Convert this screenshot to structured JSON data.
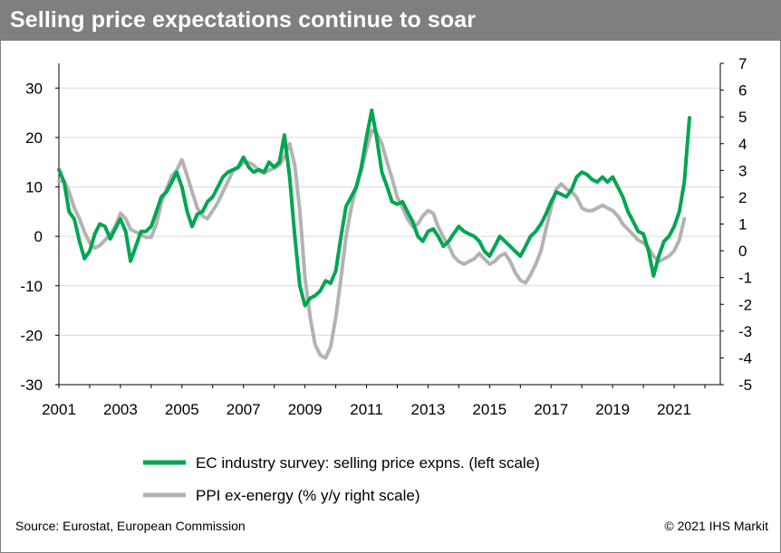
{
  "title": "Selling price expectations continue to soar",
  "source": "Source: Eurostat, European Commission",
  "copyright": "© 2021 IHS Markit",
  "colors": {
    "green": "#00a651",
    "gray": "#b3b3b3",
    "header": "#7f7f7f"
  },
  "chart_data": {
    "type": "line",
    "title": "Selling price expectations continue to soar",
    "x_ticks": [
      "2001",
      "2003",
      "2005",
      "2007",
      "2009",
      "2011",
      "2013",
      "2015",
      "2017",
      "2019",
      "2021"
    ],
    "xlim": [
      2001,
      2022.5
    ],
    "y_left": {
      "lim": [
        -30,
        35
      ],
      "ticks": [
        "30",
        "20",
        "10",
        "0",
        "-10",
        "-20",
        "-30"
      ]
    },
    "y_right": {
      "lim": [
        -5,
        7
      ],
      "ticks": [
        "7",
        "6",
        "5",
        "4",
        "3",
        "2",
        "1",
        "0",
        "-1",
        "-2",
        "-3",
        "-4",
        "-5"
      ]
    },
    "grid": "horizontal",
    "legend_position": "bottom",
    "series": [
      {
        "name": "EC industry survey: selling price expns. (left scale)",
        "axis": "left",
        "color": "#00a651",
        "points": [
          [
            2001.0,
            13.5
          ],
          [
            2001.17,
            11
          ],
          [
            2001.33,
            5
          ],
          [
            2001.5,
            3.5
          ],
          [
            2001.67,
            -1
          ],
          [
            2001.83,
            -4.5
          ],
          [
            2002.0,
            -3
          ],
          [
            2002.17,
            0.5
          ],
          [
            2002.33,
            2.5
          ],
          [
            2002.5,
            2
          ],
          [
            2002.67,
            -0.5
          ],
          [
            2002.83,
            1.5
          ],
          [
            2003.0,
            3.5
          ],
          [
            2003.17,
            1
          ],
          [
            2003.33,
            -5
          ],
          [
            2003.5,
            -2
          ],
          [
            2003.67,
            1
          ],
          [
            2003.83,
            1
          ],
          [
            2004.0,
            2
          ],
          [
            2004.17,
            5
          ],
          [
            2004.33,
            8
          ],
          [
            2004.5,
            9
          ],
          [
            2004.67,
            11
          ],
          [
            2004.83,
            13
          ],
          [
            2005.0,
            10
          ],
          [
            2005.17,
            5
          ],
          [
            2005.33,
            2
          ],
          [
            2005.5,
            4.5
          ],
          [
            2005.67,
            5
          ],
          [
            2005.83,
            7
          ],
          [
            2006.0,
            8
          ],
          [
            2006.17,
            10
          ],
          [
            2006.33,
            12
          ],
          [
            2006.5,
            13
          ],
          [
            2006.67,
            13.5
          ],
          [
            2006.83,
            14
          ],
          [
            2007.0,
            16
          ],
          [
            2007.17,
            14
          ],
          [
            2007.33,
            13
          ],
          [
            2007.5,
            13.5
          ],
          [
            2007.67,
            13
          ],
          [
            2007.83,
            15
          ],
          [
            2008.0,
            14
          ],
          [
            2008.17,
            15
          ],
          [
            2008.33,
            20.5
          ],
          [
            2008.5,
            12
          ],
          [
            2008.67,
            0
          ],
          [
            2008.83,
            -10
          ],
          [
            2009.0,
            -14
          ],
          [
            2009.17,
            -12.5
          ],
          [
            2009.33,
            -12
          ],
          [
            2009.5,
            -11
          ],
          [
            2009.67,
            -9
          ],
          [
            2009.83,
            -9.5
          ],
          [
            2010.0,
            -7
          ],
          [
            2010.17,
            0
          ],
          [
            2010.33,
            6
          ],
          [
            2010.5,
            8
          ],
          [
            2010.67,
            10
          ],
          [
            2010.83,
            14
          ],
          [
            2011.0,
            20
          ],
          [
            2011.17,
            25.5
          ],
          [
            2011.33,
            20
          ],
          [
            2011.5,
            13
          ],
          [
            2011.67,
            10
          ],
          [
            2011.83,
            7
          ],
          [
            2012.0,
            6.5
          ],
          [
            2012.17,
            7
          ],
          [
            2012.33,
            5
          ],
          [
            2012.5,
            3
          ],
          [
            2012.67,
            0
          ],
          [
            2012.83,
            -1
          ],
          [
            2013.0,
            1
          ],
          [
            2013.17,
            1.5
          ],
          [
            2013.33,
            0
          ],
          [
            2013.5,
            -2
          ],
          [
            2013.67,
            -1
          ],
          [
            2013.83,
            0.5
          ],
          [
            2014.0,
            2
          ],
          [
            2014.17,
            1
          ],
          [
            2014.33,
            0.5
          ],
          [
            2014.5,
            0
          ],
          [
            2014.67,
            -1
          ],
          [
            2014.83,
            -3
          ],
          [
            2015.0,
            -4
          ],
          [
            2015.17,
            -2
          ],
          [
            2015.33,
            0
          ],
          [
            2015.5,
            -1
          ],
          [
            2015.67,
            -2
          ],
          [
            2015.83,
            -3
          ],
          [
            2016.0,
            -4
          ],
          [
            2016.17,
            -2
          ],
          [
            2016.33,
            0
          ],
          [
            2016.5,
            1
          ],
          [
            2016.67,
            2.5
          ],
          [
            2016.83,
            4.5
          ],
          [
            2017.0,
            7
          ],
          [
            2017.17,
            9
          ],
          [
            2017.33,
            8.5
          ],
          [
            2017.5,
            8
          ],
          [
            2017.67,
            9.5
          ],
          [
            2017.83,
            12
          ],
          [
            2018.0,
            13
          ],
          [
            2018.17,
            12.5
          ],
          [
            2018.33,
            11.5
          ],
          [
            2018.5,
            11
          ],
          [
            2018.67,
            12
          ],
          [
            2018.83,
            11
          ],
          [
            2019.0,
            12
          ],
          [
            2019.17,
            10
          ],
          [
            2019.33,
            8
          ],
          [
            2019.5,
            5
          ],
          [
            2019.67,
            3
          ],
          [
            2019.83,
            1
          ],
          [
            2020.0,
            0.5
          ],
          [
            2020.17,
            -3
          ],
          [
            2020.33,
            -8
          ],
          [
            2020.5,
            -4
          ],
          [
            2020.67,
            -1
          ],
          [
            2020.83,
            0
          ],
          [
            2021.0,
            2
          ],
          [
            2021.17,
            5
          ],
          [
            2021.33,
            11
          ],
          [
            2021.5,
            24
          ]
        ]
      },
      {
        "name": "PPI ex-energy (% y/y right scale)",
        "axis": "right",
        "color": "#b3b3b3",
        "points": [
          [
            2001.0,
            2.6
          ],
          [
            2001.17,
            2.6
          ],
          [
            2001.33,
            2.2
          ],
          [
            2001.5,
            1.6
          ],
          [
            2001.67,
            1.2
          ],
          [
            2001.83,
            0.7
          ],
          [
            2002.0,
            0.3
          ],
          [
            2002.17,
            0.1
          ],
          [
            2002.33,
            0.2
          ],
          [
            2002.5,
            0.4
          ],
          [
            2002.67,
            0.6
          ],
          [
            2002.83,
            0.9
          ],
          [
            2003.0,
            1.4
          ],
          [
            2003.17,
            1.2
          ],
          [
            2003.33,
            0.8
          ],
          [
            2003.5,
            0.7
          ],
          [
            2003.67,
            0.6
          ],
          [
            2003.83,
            0.5
          ],
          [
            2004.0,
            0.5
          ],
          [
            2004.17,
            1.0
          ],
          [
            2004.33,
            1.8
          ],
          [
            2004.5,
            2.3
          ],
          [
            2004.67,
            2.8
          ],
          [
            2004.83,
            3.0
          ],
          [
            2005.0,
            3.4
          ],
          [
            2005.17,
            2.8
          ],
          [
            2005.33,
            2.2
          ],
          [
            2005.5,
            1.6
          ],
          [
            2005.67,
            1.3
          ],
          [
            2005.83,
            1.2
          ],
          [
            2006.0,
            1.5
          ],
          [
            2006.17,
            1.8
          ],
          [
            2006.33,
            2.2
          ],
          [
            2006.5,
            2.6
          ],
          [
            2006.67,
            3.0
          ],
          [
            2006.83,
            3.1
          ],
          [
            2007.0,
            3.3
          ],
          [
            2007.17,
            3.3
          ],
          [
            2007.33,
            3.2
          ],
          [
            2007.5,
            3.0
          ],
          [
            2007.67,
            2.9
          ],
          [
            2007.83,
            3.0
          ],
          [
            2008.0,
            3.1
          ],
          [
            2008.17,
            3.2
          ],
          [
            2008.33,
            3.5
          ],
          [
            2008.5,
            4.0
          ],
          [
            2008.67,
            3.2
          ],
          [
            2008.83,
            1.5
          ],
          [
            2009.0,
            -1.0
          ],
          [
            2009.17,
            -2.5
          ],
          [
            2009.33,
            -3.5
          ],
          [
            2009.5,
            -3.9
          ],
          [
            2009.67,
            -4.0
          ],
          [
            2009.83,
            -3.6
          ],
          [
            2010.0,
            -2.5
          ],
          [
            2010.17,
            -1.0
          ],
          [
            2010.33,
            0.5
          ],
          [
            2010.5,
            1.6
          ],
          [
            2010.67,
            2.4
          ],
          [
            2010.83,
            3.0
          ],
          [
            2011.0,
            3.8
          ],
          [
            2011.17,
            4.5
          ],
          [
            2011.33,
            4.4
          ],
          [
            2011.5,
            4.0
          ],
          [
            2011.67,
            3.3
          ],
          [
            2011.83,
            2.7
          ],
          [
            2012.0,
            2.0
          ],
          [
            2012.17,
            1.6
          ],
          [
            2012.33,
            1.2
          ],
          [
            2012.5,
            0.9
          ],
          [
            2012.67,
            1.0
          ],
          [
            2012.83,
            1.3
          ],
          [
            2013.0,
            1.5
          ],
          [
            2013.17,
            1.4
          ],
          [
            2013.33,
            0.9
          ],
          [
            2013.5,
            0.5
          ],
          [
            2013.67,
            0.2
          ],
          [
            2013.83,
            -0.2
          ],
          [
            2014.0,
            -0.4
          ],
          [
            2014.17,
            -0.5
          ],
          [
            2014.33,
            -0.4
          ],
          [
            2014.5,
            -0.3
          ],
          [
            2014.67,
            -0.1
          ],
          [
            2014.83,
            -0.3
          ],
          [
            2015.0,
            -0.5
          ],
          [
            2015.17,
            -0.4
          ],
          [
            2015.33,
            -0.2
          ],
          [
            2015.5,
            -0.1
          ],
          [
            2015.67,
            -0.4
          ],
          [
            2015.83,
            -0.8
          ],
          [
            2016.0,
            -1.1
          ],
          [
            2016.17,
            -1.2
          ],
          [
            2016.33,
            -0.9
          ],
          [
            2016.5,
            -0.5
          ],
          [
            2016.67,
            0.0
          ],
          [
            2016.83,
            0.8
          ],
          [
            2017.0,
            1.6
          ],
          [
            2017.17,
            2.3
          ],
          [
            2017.33,
            2.5
          ],
          [
            2017.5,
            2.3
          ],
          [
            2017.67,
            2.2
          ],
          [
            2017.83,
            2.0
          ],
          [
            2018.0,
            1.6
          ],
          [
            2018.17,
            1.5
          ],
          [
            2018.33,
            1.5
          ],
          [
            2018.5,
            1.6
          ],
          [
            2018.67,
            1.7
          ],
          [
            2018.83,
            1.6
          ],
          [
            2019.0,
            1.5
          ],
          [
            2019.17,
            1.3
          ],
          [
            2019.33,
            1.0
          ],
          [
            2019.5,
            0.8
          ],
          [
            2019.67,
            0.6
          ],
          [
            2019.83,
            0.4
          ],
          [
            2020.0,
            0.3
          ],
          [
            2020.17,
            0.1
          ],
          [
            2020.33,
            -0.2
          ],
          [
            2020.5,
            -0.4
          ],
          [
            2020.67,
            -0.3
          ],
          [
            2020.83,
            -0.2
          ],
          [
            2021.0,
            0.0
          ],
          [
            2021.17,
            0.4
          ],
          [
            2021.33,
            1.2
          ]
        ]
      }
    ]
  }
}
